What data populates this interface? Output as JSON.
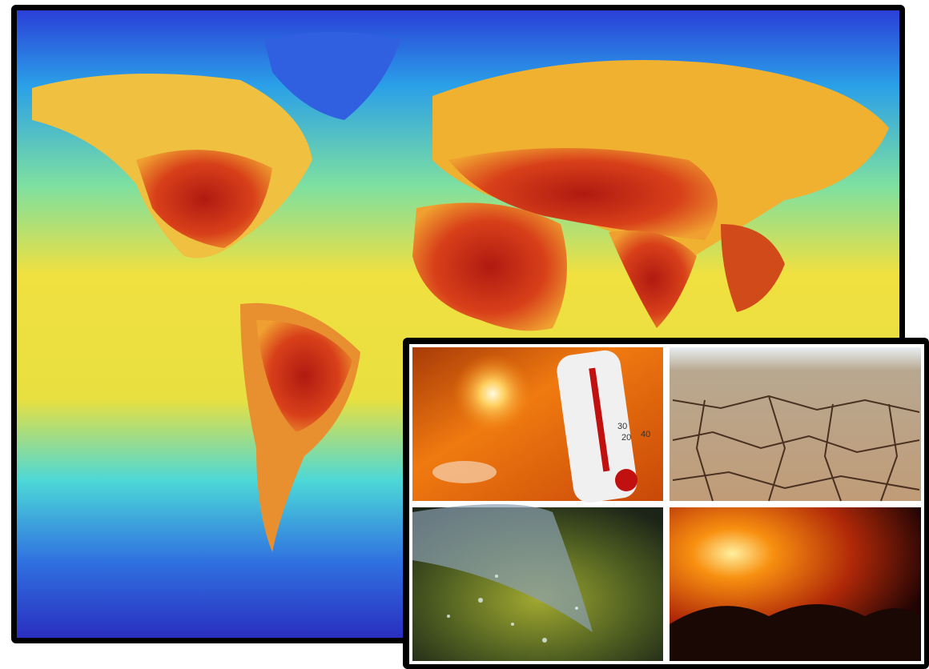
{
  "thermometer": {
    "labels": [
      "20",
      "30",
      "40"
    ]
  }
}
